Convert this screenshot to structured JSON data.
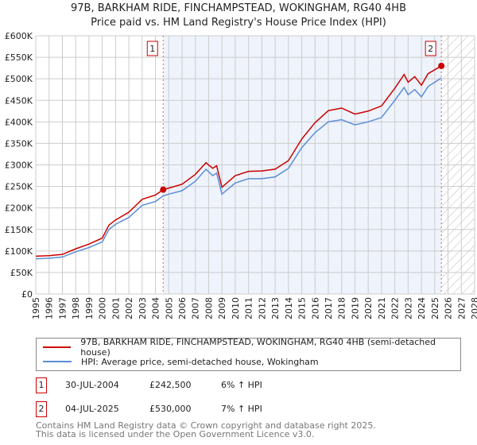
{
  "chart_data": {
    "type": "line",
    "title": "97B, BARKHAM RIDE, FINCHAMPSTEAD, WOKINGHAM, RG40 4HB",
    "subtitle": "Price paid vs. HM Land Registry's House Price Index (HPI)",
    "xlim": [
      1995,
      2028
    ],
    "ylim": [
      0,
      600000
    ],
    "x_ticks": [
      "1995",
      "1996",
      "1997",
      "1998",
      "1999",
      "2000",
      "2001",
      "2002",
      "2003",
      "2004",
      "2005",
      "2006",
      "2007",
      "2008",
      "2009",
      "2010",
      "2011",
      "2012",
      "2013",
      "2014",
      "2015",
      "2016",
      "2017",
      "2018",
      "2019",
      "2020",
      "2021",
      "2022",
      "2023",
      "2024",
      "2025",
      "2026",
      "2027",
      "2028"
    ],
    "y_ticks": [
      {
        "v": 0,
        "label": "£0"
      },
      {
        "v": 50000,
        "label": "£50K"
      },
      {
        "v": 100000,
        "label": "£100K"
      },
      {
        "v": 150000,
        "label": "£150K"
      },
      {
        "v": 200000,
        "label": "£200K"
      },
      {
        "v": 250000,
        "label": "£250K"
      },
      {
        "v": 300000,
        "label": "£300K"
      },
      {
        "v": 350000,
        "label": "£350K"
      },
      {
        "v": 400000,
        "label": "£400K"
      },
      {
        "v": 450000,
        "label": "£450K"
      },
      {
        "v": 500000,
        "label": "£500K"
      },
      {
        "v": 550000,
        "label": "£550K"
      },
      {
        "v": 600000,
        "label": "£600K"
      }
    ],
    "grid": true,
    "shaded_range": [
      2004.58,
      2025.5
    ],
    "hatched_range": [
      2025.5,
      2028
    ],
    "series": [
      {
        "name": "97B, BARKHAM RIDE, FINCHAMPSTEAD, WOKINGHAM, RG40 4HB (semi-detached house)",
        "color": "#cc0000",
        "x": [
          1995,
          1996,
          1997,
          1998,
          1999,
          2000,
          2000.5,
          2001,
          2002,
          2003,
          2004,
          2004.58,
          2005,
          2006,
          2007,
          2007.8,
          2008.3,
          2008.6,
          2009,
          2010,
          2011,
          2012,
          2013,
          2014,
          2015,
          2016,
          2017,
          2018,
          2019,
          2020,
          2021,
          2022,
          2022.7,
          2023,
          2023.5,
          2024,
          2024.5,
          2025.5
        ],
        "y": [
          88000,
          89000,
          92000,
          105000,
          116000,
          130000,
          160000,
          172000,
          190000,
          220000,
          230000,
          242500,
          246000,
          255000,
          278000,
          305000,
          292000,
          298000,
          248000,
          275000,
          285000,
          286000,
          290000,
          310000,
          360000,
          398000,
          426000,
          432000,
          418000,
          425000,
          437000,
          478000,
          510000,
          492000,
          505000,
          485000,
          512000,
          530000
        ]
      },
      {
        "name": "HPI: Average price, semi-detached house, Wokingham",
        "color": "#5b8ed6",
        "x": [
          1995,
          1996,
          1997,
          1998,
          1999,
          2000,
          2000.5,
          2001,
          2002,
          2003,
          2004,
          2004.58,
          2005,
          2006,
          2007,
          2007.8,
          2008.3,
          2008.6,
          2009,
          2010,
          2011,
          2012,
          2013,
          2014,
          2015,
          2016,
          2017,
          2018,
          2019,
          2020,
          2021,
          2022,
          2022.7,
          2023,
          2023.5,
          2024,
          2024.5,
          2025.5
        ],
        "y": [
          82000,
          83000,
          86000,
          98000,
          108000,
          121000,
          150000,
          162000,
          178000,
          206000,
          215000,
          228000,
          232000,
          240000,
          262000,
          290000,
          275000,
          281000,
          232000,
          258000,
          268000,
          268000,
          272000,
          292000,
          340000,
          375000,
          400000,
          405000,
          393000,
          400000,
          410000,
          450000,
          480000,
          463000,
          475000,
          458000,
          482000,
          502000
        ]
      }
    ],
    "annotations": [
      {
        "label": "1",
        "x": 2004.58,
        "y": 242500
      },
      {
        "label": "2",
        "x": 2025.5,
        "y": 530000
      }
    ]
  },
  "table": [
    {
      "id": "1",
      "date": "30-JUL-2004",
      "price": "£242,500",
      "hpi": "6% ↑ HPI"
    },
    {
      "id": "2",
      "date": "04-JUL-2025",
      "price": "£530,000",
      "hpi": "7% ↑ HPI"
    }
  ],
  "footer": {
    "line1": "Contains HM Land Registry data © Crown copyright and database right 2025.",
    "line2": "This data is licensed under the Open Government Licence v3.0."
  }
}
